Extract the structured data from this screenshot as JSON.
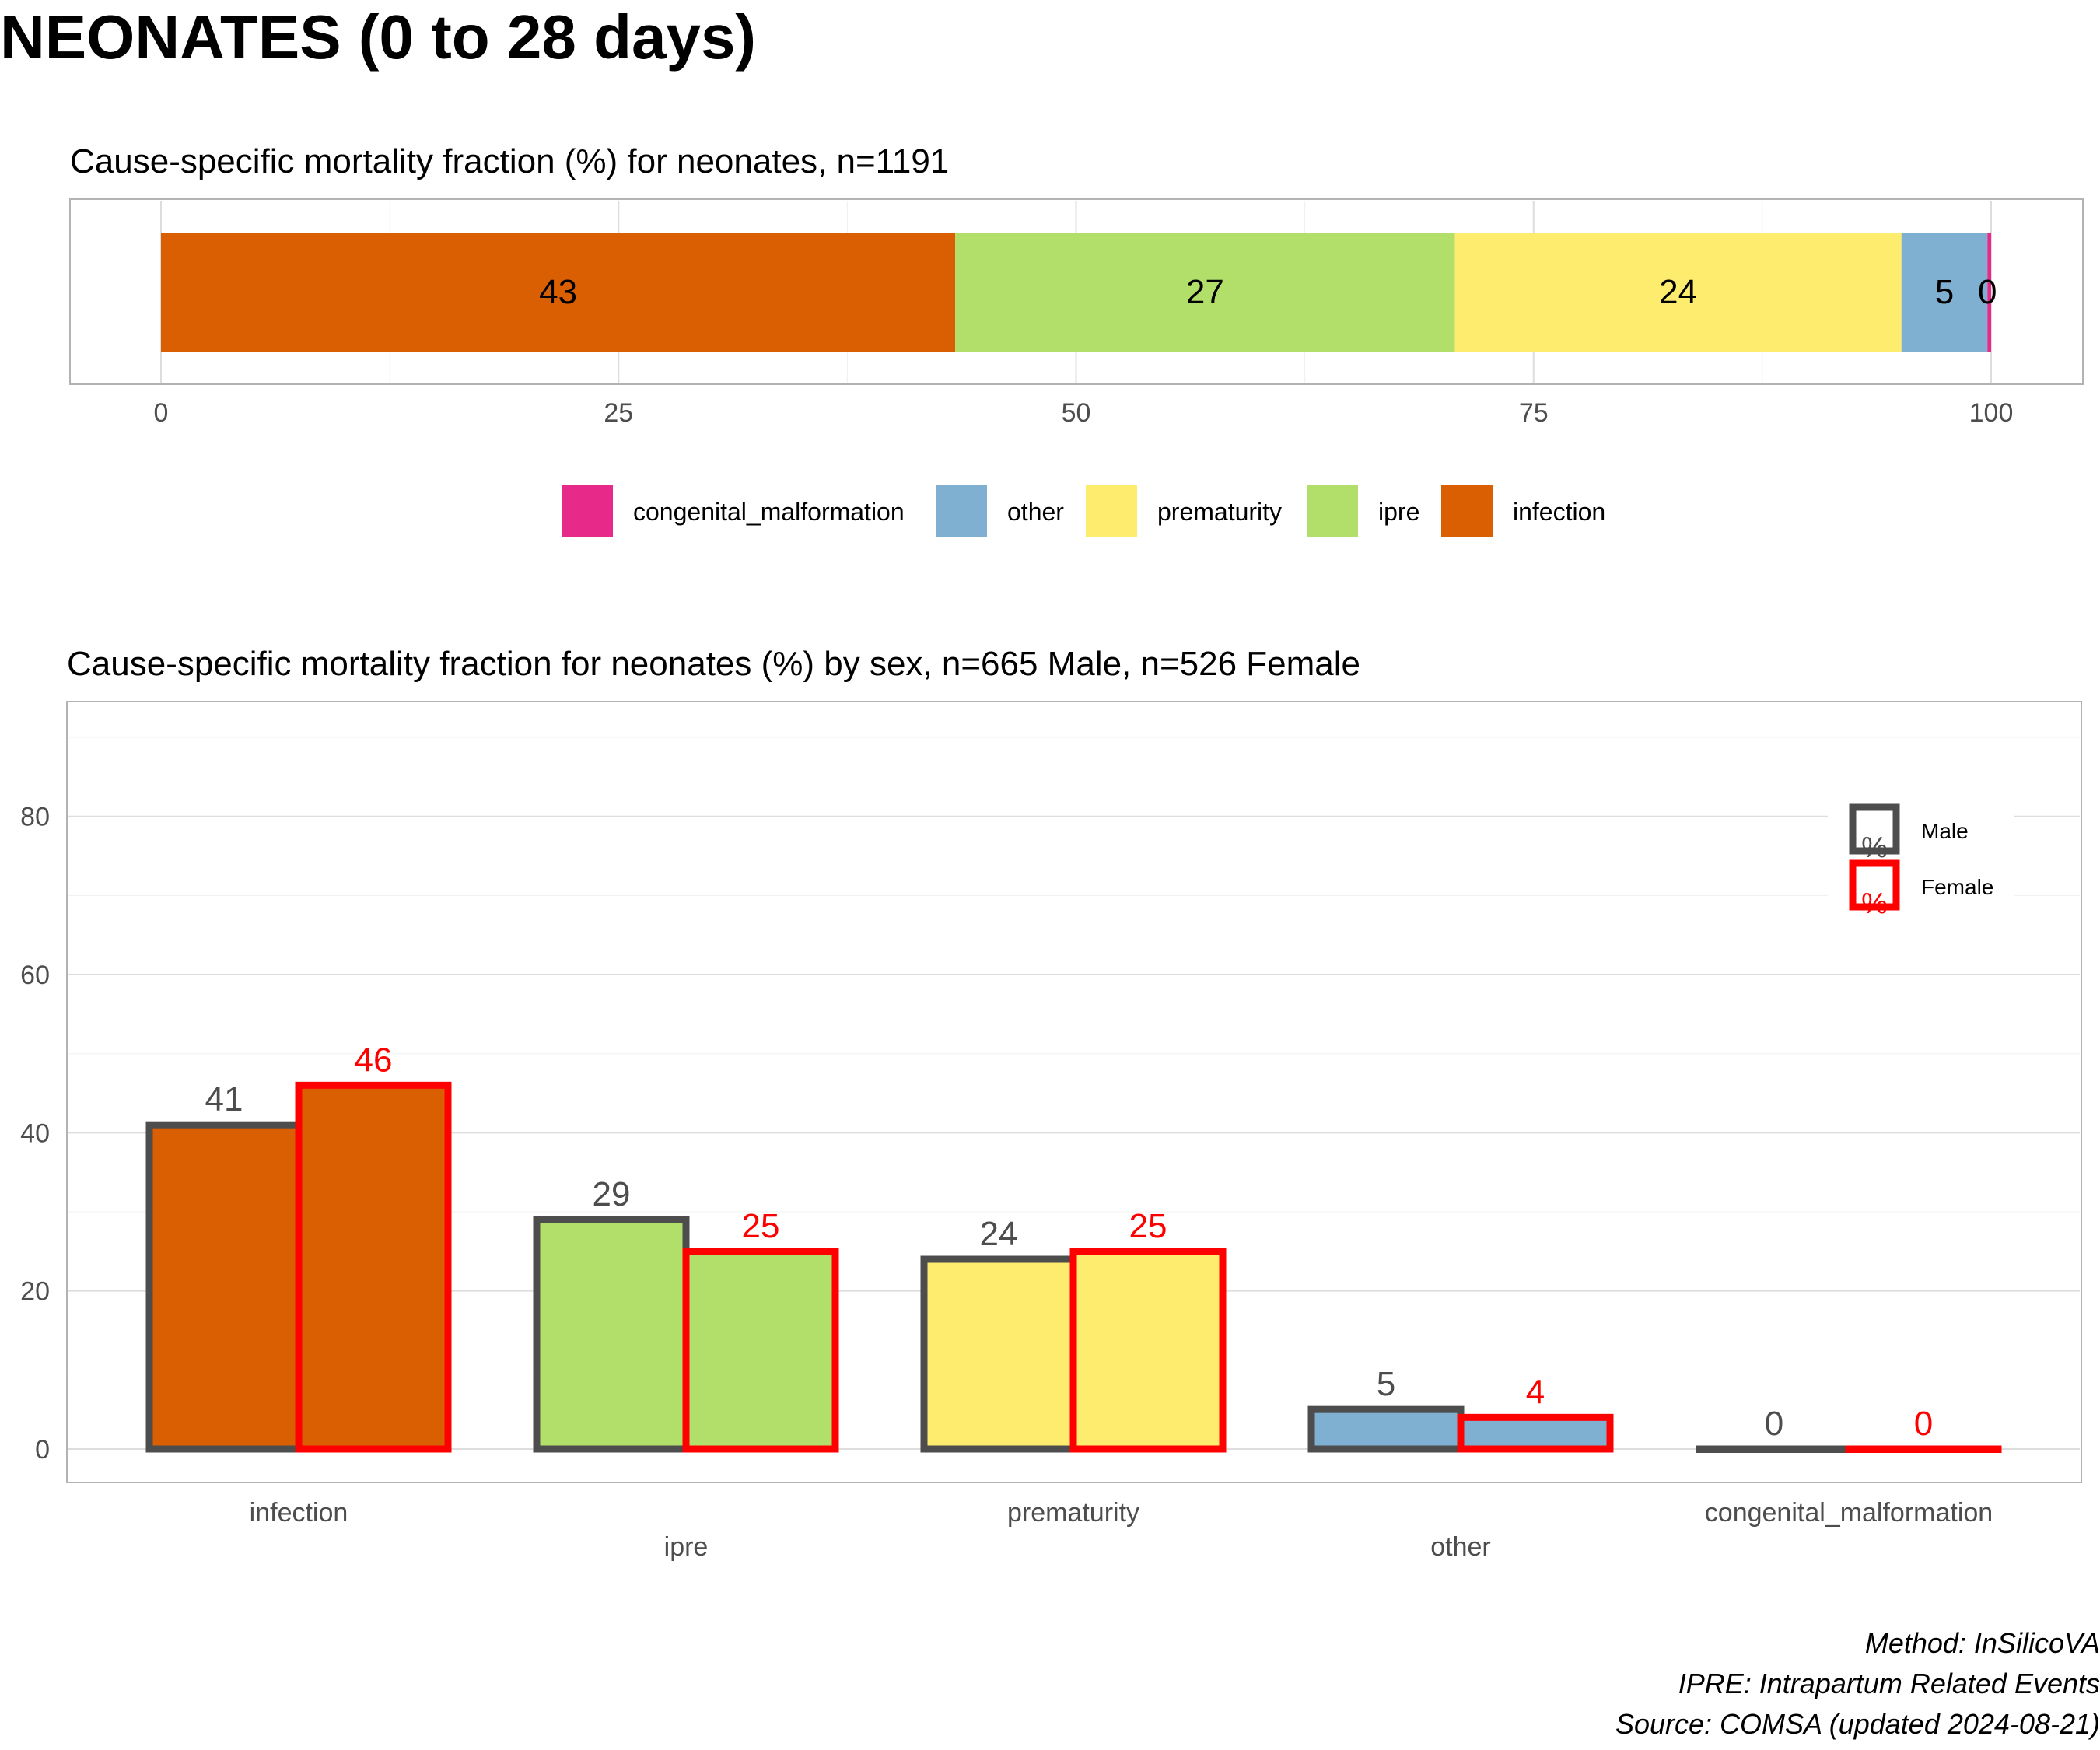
{
  "page_title": "NEONATES (0 to 28 days)",
  "colors": {
    "congenital_malformation": "#E7298A",
    "other": "#7FAFD1",
    "prematurity": "#FEEC6F",
    "ipre": "#B2DF6A",
    "infection": "#D95F02",
    "male_outline": "#4D4D4D",
    "female_outline": "#FF0000"
  },
  "chart_data": [
    {
      "type": "bar",
      "orientation": "horizontal-stacked",
      "title": "Cause-specific mortality fraction (%) for neonates, n=1191",
      "xlim": [
        0,
        100
      ],
      "xticks": [
        0,
        25,
        50,
        75,
        100
      ],
      "grid": true,
      "legend_position": "bottom",
      "series": [
        {
          "name": "infection",
          "value": 43.4,
          "label": "43"
        },
        {
          "name": "ipre",
          "value": 27.3,
          "label": "27"
        },
        {
          "name": "prematurity",
          "value": 24.4,
          "label": "24"
        },
        {
          "name": "other",
          "value": 4.7,
          "label": "5"
        },
        {
          "name": "congenital_malformation",
          "value": 0.2,
          "label": "0"
        }
      ],
      "legend_order": [
        "congenital_malformation",
        "other",
        "prematurity",
        "ipre",
        "infection"
      ]
    },
    {
      "type": "bar",
      "orientation": "vertical-grouped",
      "title": "Cause-specific mortality fraction for neonates (%) by sex, n=665 Male, n=526 Female",
      "categories": [
        "infection",
        "ipre",
        "prematurity",
        "other",
        "congenital_malformation"
      ],
      "ylim": [
        0,
        90
      ],
      "yticks": [
        0,
        20,
        40,
        60,
        80
      ],
      "grid": true,
      "legend_position": "top-right",
      "legend_symbol": "%",
      "series": [
        {
          "name": "Male",
          "values": [
            41,
            29,
            24,
            5,
            0
          ]
        },
        {
          "name": "Female",
          "values": [
            46,
            25,
            25,
            4,
            0
          ]
        }
      ]
    }
  ],
  "footer": {
    "method": "Method: InSilicoVA",
    "ipre_note": "IPRE: Intrapartum Related Events",
    "source": "Source: COMSA (updated 2024-08-21)"
  }
}
